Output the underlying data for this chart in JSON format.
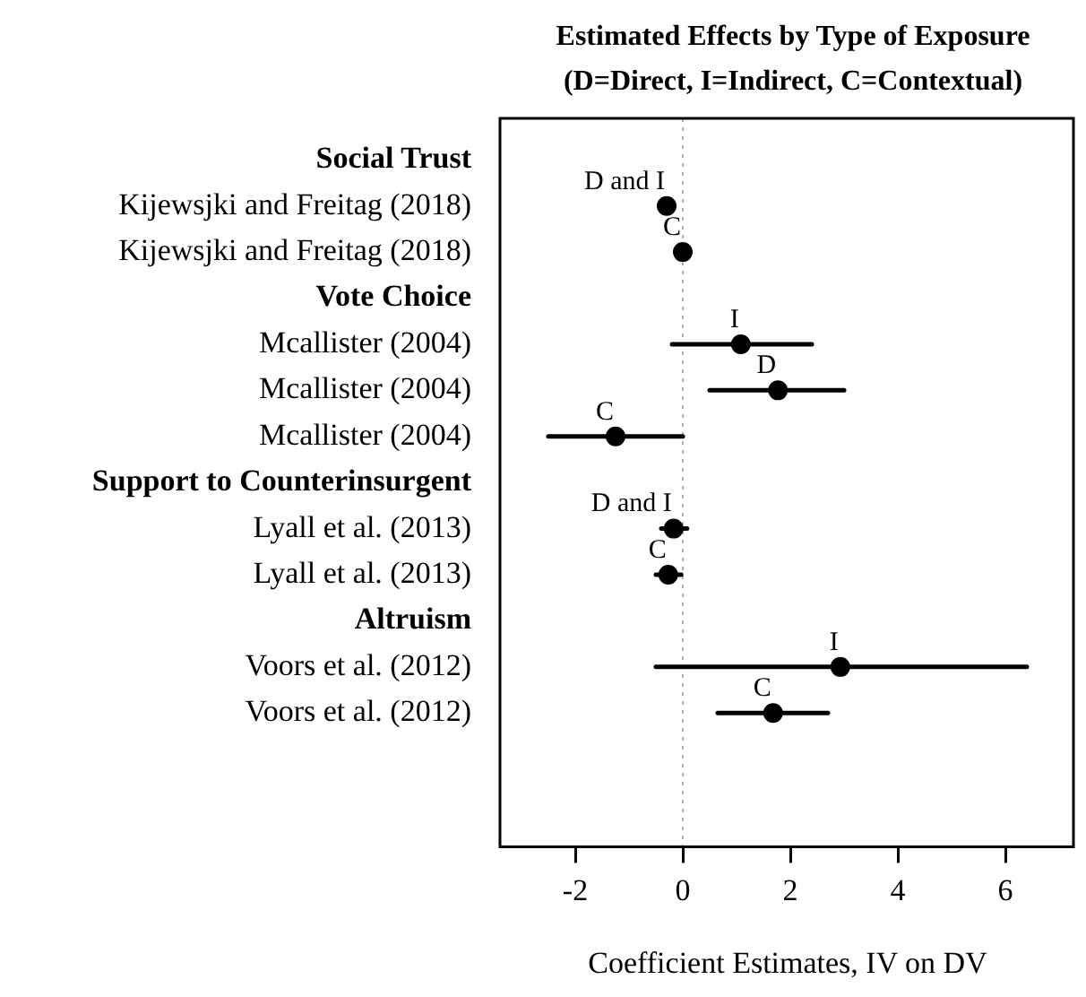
{
  "chart_data": {
    "type": "scatter",
    "orientation": "horizontal",
    "title": "Estimated Effects by Type of Exposure",
    "subtitle": "(D=Direct, I=Indirect, C=Contextual)",
    "xlabel": "Coefficient Estimates, IV on DV",
    "categories": [
      "Social Trust",
      "Kijewsjki and Freitag (2018)",
      "Kijewsjki and Freitag (2018)",
      "Vote Choice",
      "Mcallister (2004)",
      "Mcallister (2004)",
      "Mcallister (2004)",
      "Support to Counterinsurgent",
      "Lyall et al. (2013)",
      "Lyall et al. (2013)",
      "Altruism",
      "Voors et al. (2012)",
      "Voors et al. (2012)"
    ],
    "series": [
      {
        "color": "#000000",
        "values": [
          null,
          -0.3,
          0.0,
          null,
          1.08,
          1.77,
          -1.25,
          null,
          -0.17,
          -0.27,
          null,
          2.93,
          1.68
        ],
        "errors": [
          null,
          [
            -0.4,
            -0.2
          ],
          null,
          null,
          [
            -0.2,
            2.4
          ],
          [
            0.5,
            3.0
          ],
          [
            -2.5,
            0.0
          ],
          null,
          [
            -0.4,
            0.08
          ],
          [
            -0.5,
            -0.03
          ],
          null,
          [
            -0.5,
            6.4
          ],
          [
            0.65,
            2.7
          ]
        ],
        "value_labels": [
          null,
          "D and I",
          "C",
          null,
          "I",
          "D",
          "C",
          null,
          "D and I",
          "C",
          null,
          "I",
          "C"
        ]
      }
    ],
    "xlim": [
      -3.4,
      7.3
    ],
    "xticks": [
      -2,
      0,
      2,
      4,
      6
    ],
    "ref_lines": [
      {
        "axis": "x",
        "value": 0,
        "color": "#b0b0b0",
        "line_style": "dotted"
      }
    ],
    "marker": "circle",
    "grid": false,
    "legend": false
  }
}
